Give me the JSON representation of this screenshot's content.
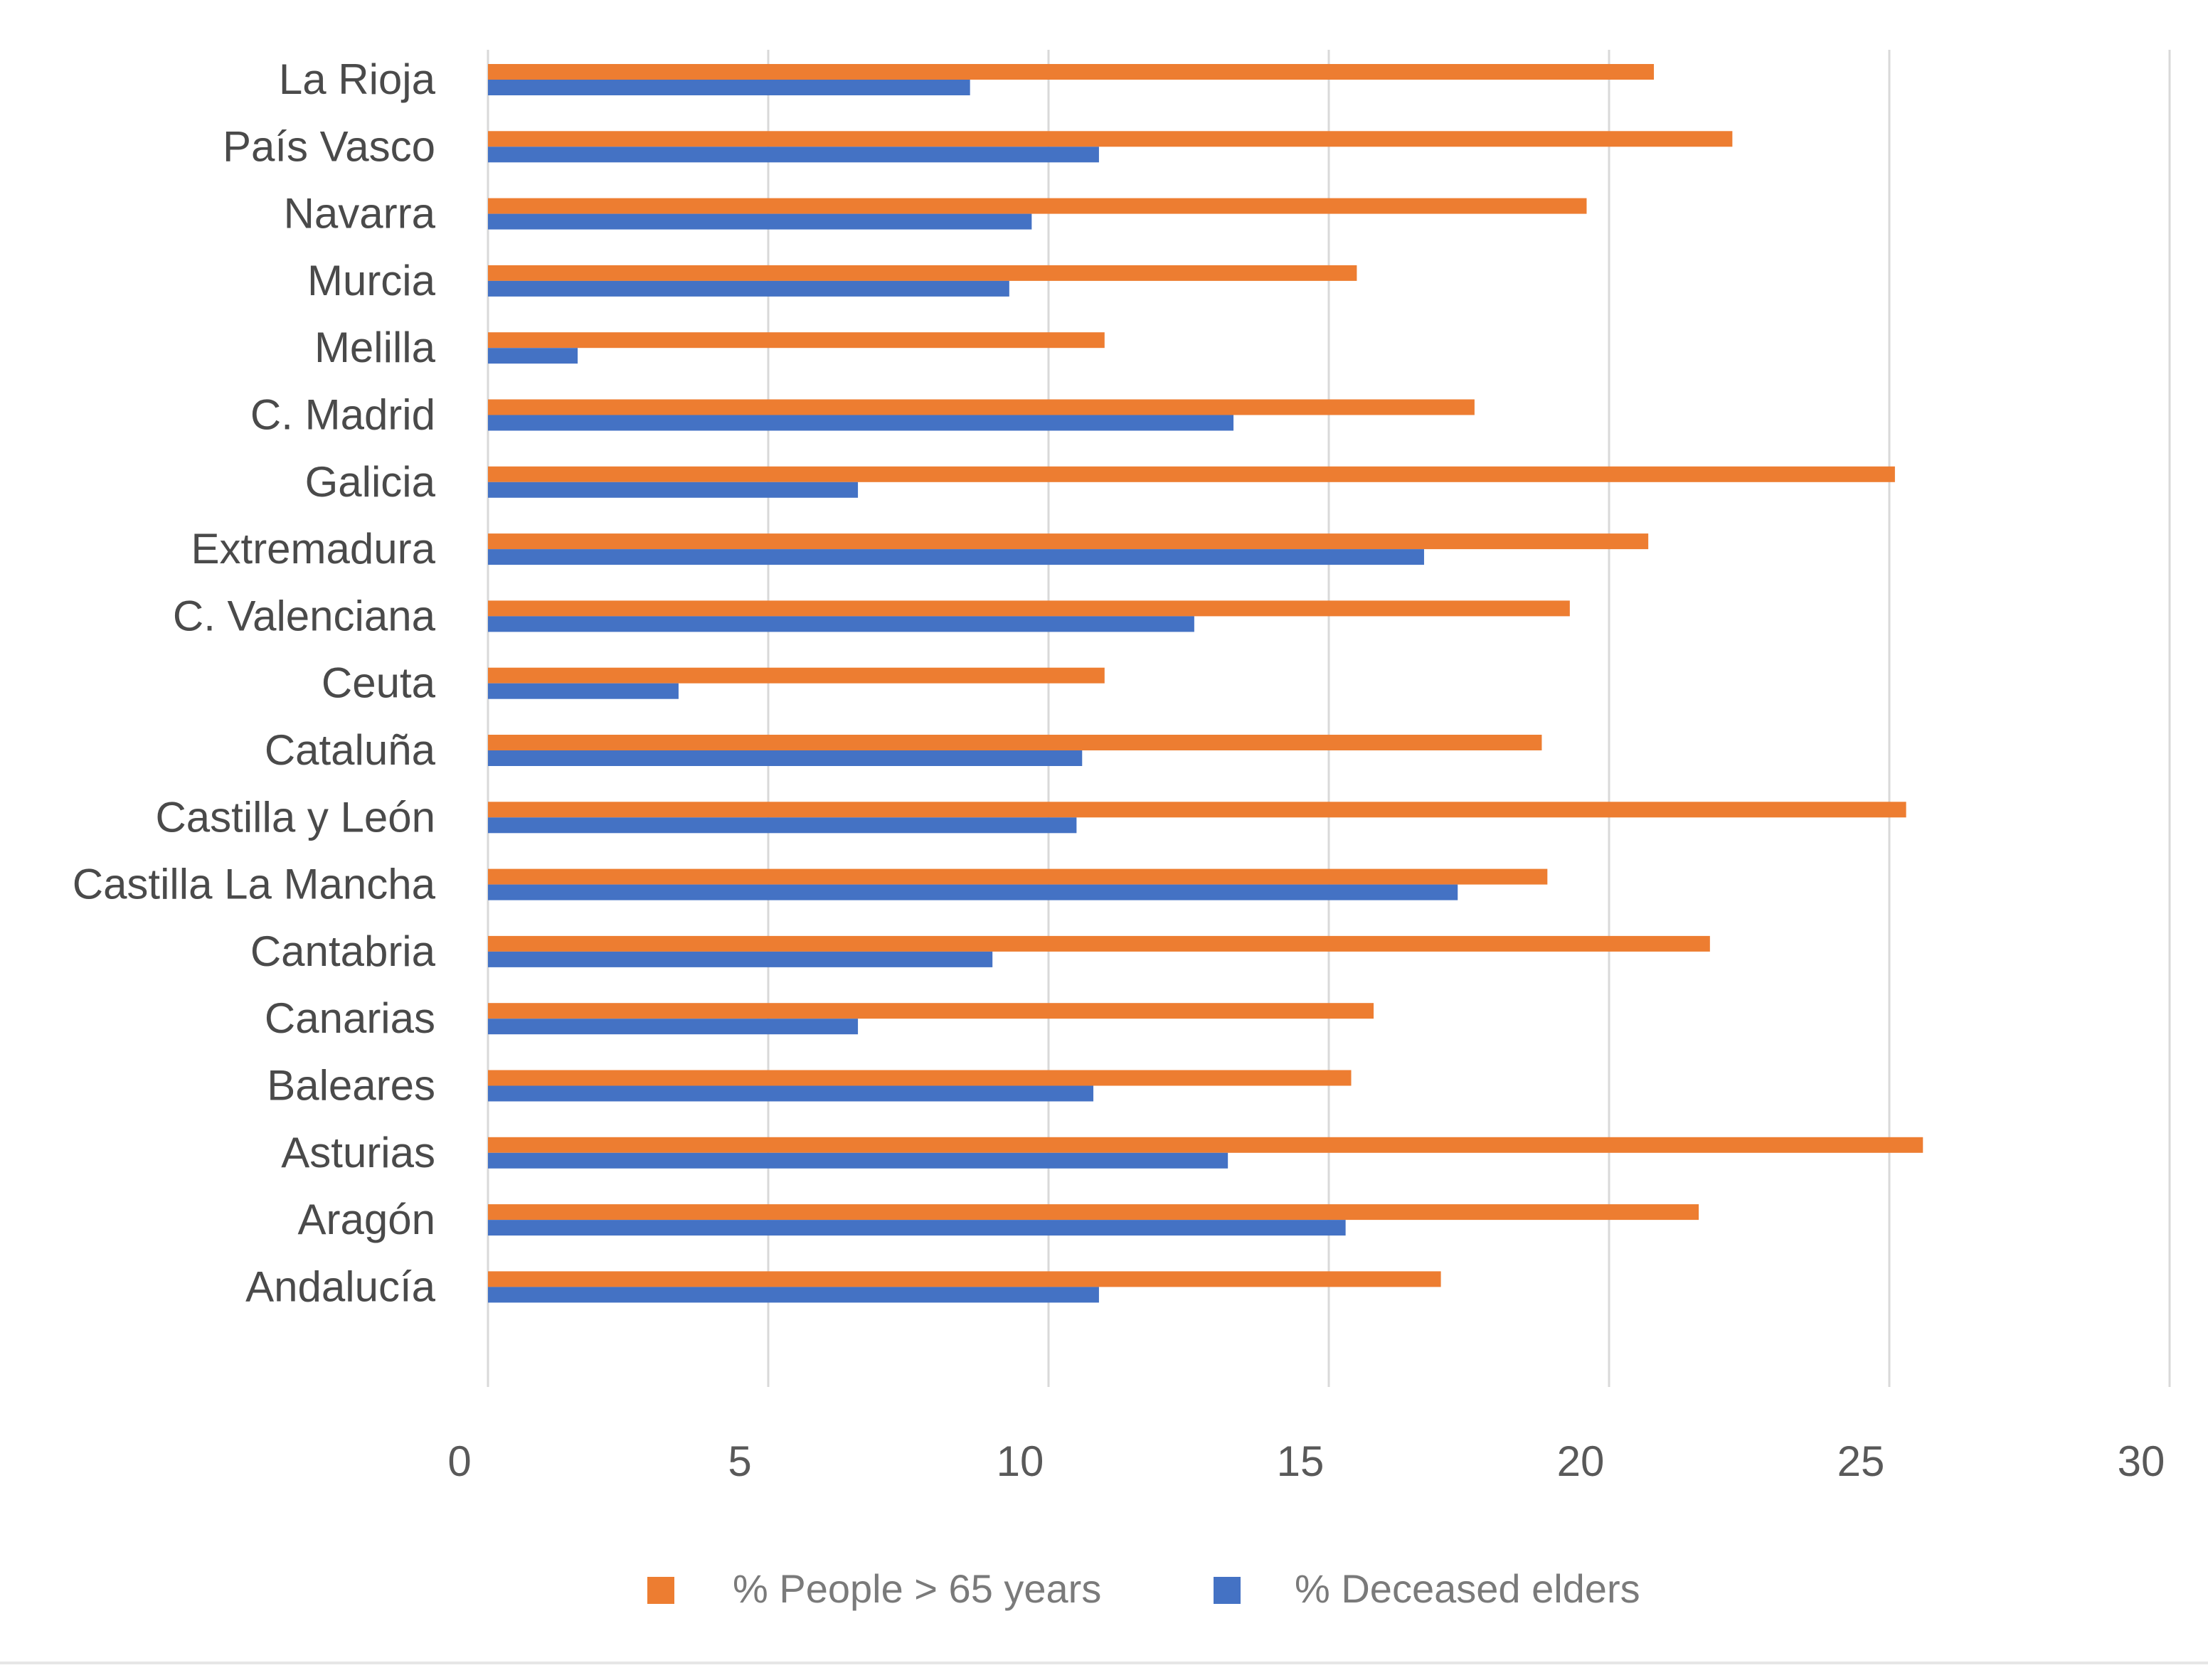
{
  "chart_data": {
    "type": "bar",
    "orientation": "horizontal",
    "title": "",
    "xlabel": "",
    "ylabel": "",
    "xlim": [
      0,
      30
    ],
    "x_ticks": [
      0,
      5,
      10,
      15,
      20,
      25,
      30
    ],
    "grid": true,
    "legend_position": "bottom",
    "categories": [
      "La Rioja",
      "País Vasco",
      "Navarra",
      "Murcia",
      "Melilla",
      "C. Madrid",
      "Galicia",
      "Extremadura",
      "C. Valenciana",
      "Ceuta",
      "Cataluña",
      "Castilla y León",
      "Castilla La Mancha",
      "Cantabria",
      "Canarias",
      "Baleares",
      "Asturias",
      "Aragón",
      "Andalucía"
    ],
    "series": [
      {
        "name": "% People > 65 years",
        "color": "#ED7D31",
        "values": [
          20.8,
          22.2,
          19.6,
          15.5,
          11.0,
          17.6,
          25.1,
          20.7,
          19.3,
          11.0,
          18.8,
          25.3,
          18.9,
          21.8,
          15.8,
          15.4,
          25.6,
          21.6,
          17.0
        ]
      },
      {
        "name": "% Deceased elders",
        "color": "#4472C4",
        "values": [
          8.6,
          10.9,
          9.7,
          9.3,
          1.6,
          13.3,
          6.6,
          16.7,
          12.6,
          3.4,
          10.6,
          10.5,
          17.3,
          9.0,
          6.6,
          10.8,
          13.2,
          15.3,
          10.9
        ]
      }
    ]
  }
}
